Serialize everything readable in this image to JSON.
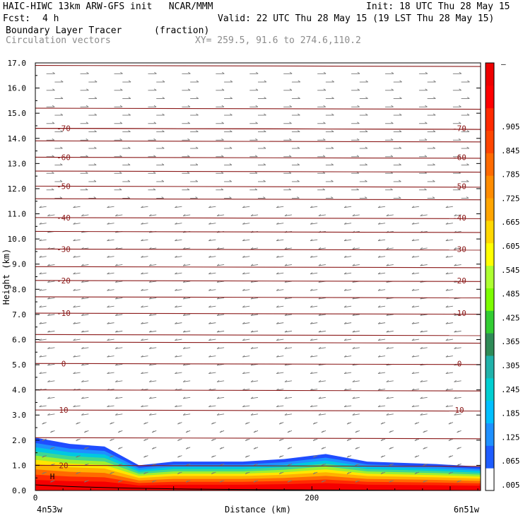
{
  "header": {
    "line1_left": "HAIC-HIWC 13km ARW-GFS init   NCAR/MMM",
    "line1_right": "Init: 18 UTC Thu 28 May 15",
    "fcst_label": "Fcst:",
    "fcst_value": "4 h",
    "valid": "Valid: 22 UTC Thu 28 May 15 (19 LST Thu 28 May 15)",
    "field_name": "Boundary Layer Tracer",
    "field_units": "(fraction)",
    "vector_label": "Circulation vectors",
    "xy_label": "XY= 259.5, 91.6 to 274.6,110.2"
  },
  "chart_data": {
    "type": "cross-section",
    "ylabel": "Height (km)",
    "xlabel": "Distance (km)",
    "ylim": [
      0,
      17
    ],
    "yticks": [
      "0.0",
      "1.0",
      "2.0",
      "3.0",
      "4.0",
      "5.0",
      "6.0",
      "7.0",
      "8.0",
      "9.0",
      "10.0",
      "11.0",
      "12.0",
      "13.0",
      "14.0",
      "15.0",
      "16.0",
      "17.0"
    ],
    "xlim": [
      0,
      322
    ],
    "xticks": [
      {
        "v": 0,
        "label": "0"
      },
      {
        "v": 200,
        "label": "200"
      }
    ],
    "x_endpoints": {
      "left": "4n53w",
      "right": "6n51w"
    },
    "colorbar": {
      "labels": [
        ".005",
        ".065",
        ".125",
        ".185",
        ".245",
        ".305",
        ".365",
        ".425",
        ".485",
        ".545",
        ".605",
        ".665",
        ".725",
        ".785",
        ".845",
        ".905"
      ],
      "colors": [
        "#ffffff",
        "#1e5cff",
        "#1e90ff",
        "#00bfff",
        "#00ced1",
        "#20b2aa",
        "#2e8b57",
        "#32cd32",
        "#7cfc00",
        "#adff2f",
        "#ffff00",
        "#ffd700",
        "#ffa500",
        "#ff8c00",
        "#ff6a00",
        "#ff4500",
        "#ff2a00",
        "#ff0000",
        "#ee0000"
      ],
      "top_label": "–"
    },
    "temperature_contours": [
      {
        "label": "-70",
        "z": 14.4
      },
      {
        "label": "-60",
        "z": 13.25
      },
      {
        "label": "-50",
        "z": 12.1
      },
      {
        "label": "-40",
        "z": 10.85
      },
      {
        "label": "-30",
        "z": 9.6
      },
      {
        "label": "-20",
        "z": 8.35
      },
      {
        "label": "-10",
        "z": 7.05
      },
      {
        "label": "0",
        "z": 5.05
      },
      {
        "label": "10",
        "z": 3.2
      },
      {
        "label": "20",
        "z": 1.0
      }
    ],
    "extra_contour_heights": [
      16.9,
      15.2,
      14.4,
      13.9,
      12.7,
      11.6,
      10.3,
      8.9,
      7.7,
      6.2,
      5.9,
      4.0,
      2.1
    ],
    "tracer_top_km": [
      {
        "x": 0,
        "z": 2.1
      },
      {
        "x": 25,
        "z": 1.85
      },
      {
        "x": 50,
        "z": 1.75
      },
      {
        "x": 75,
        "z": 1.0
      },
      {
        "x": 100,
        "z": 1.15
      },
      {
        "x": 150,
        "z": 1.15
      },
      {
        "x": 180,
        "z": 1.25
      },
      {
        "x": 210,
        "z": 1.45
      },
      {
        "x": 240,
        "z": 1.15
      },
      {
        "x": 290,
        "z": 1.05
      },
      {
        "x": 322,
        "z": 0.95
      }
    ],
    "terrain_label": "H"
  }
}
